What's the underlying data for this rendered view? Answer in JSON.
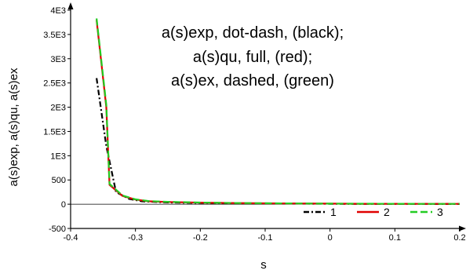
{
  "chart_data": {
    "type": "line",
    "xlabel": "s",
    "ylabel": "a(s)exp,   a(s)qu,   a(s)ex",
    "xlim": [
      -0.4,
      0.2
    ],
    "ylim": [
      -500,
      4000
    ],
    "x_ticks": [
      "-0.4",
      "-0.3",
      "-0.2",
      "-0.1",
      "0",
      "0.1",
      "0.2"
    ],
    "y_ticks": [
      "-500",
      "0",
      "500",
      "1E3",
      "1.5E3",
      "2E3",
      "2.5E3",
      "3E3",
      "3.5E3",
      "4E3"
    ],
    "annotations": [
      "a(s)exp, dot-dash, (black);",
      "a(s)qu, full, (red);",
      "a(s)ex, dashed, (green)"
    ],
    "legend_position": "bottom-right",
    "series": [
      {
        "name": "1",
        "color": "#000000",
        "style": "dot-dash",
        "x": [
          -0.36,
          -0.345,
          -0.33,
          -0.31,
          -0.29,
          -0.25,
          -0.2,
          -0.15,
          -0.1,
          -0.05,
          0,
          0.05,
          0.1,
          0.15,
          0.2
        ],
        "y": [
          2600,
          1200,
          250,
          110,
          60,
          35,
          25,
          18,
          14,
          11,
          9,
          8,
          7,
          6,
          5
        ]
      },
      {
        "name": "2",
        "color": "#e00000",
        "style": "full",
        "x": [
          -0.36,
          -0.345,
          -0.34,
          -0.32,
          -0.3,
          -0.28,
          -0.25,
          -0.2,
          -0.15,
          -0.1,
          -0.05,
          0,
          0.05,
          0.1,
          0.15,
          0.2
        ],
        "y": [
          3800,
          2000,
          400,
          170,
          95,
          60,
          45,
          32,
          24,
          18,
          14,
          11,
          9,
          8,
          7,
          6
        ]
      },
      {
        "name": "3",
        "color": "#22cc22",
        "style": "dashed",
        "x": [
          -0.36,
          -0.345,
          -0.34,
          -0.32,
          -0.3,
          -0.28,
          -0.25,
          -0.2,
          -0.15,
          -0.1,
          -0.05,
          0,
          0.05,
          0.1,
          0.15,
          0.2
        ],
        "y": [
          3830,
          2050,
          420,
          180,
          100,
          65,
          48,
          34,
          25,
          19,
          15,
          12,
          10,
          8,
          7,
          6
        ]
      }
    ]
  }
}
